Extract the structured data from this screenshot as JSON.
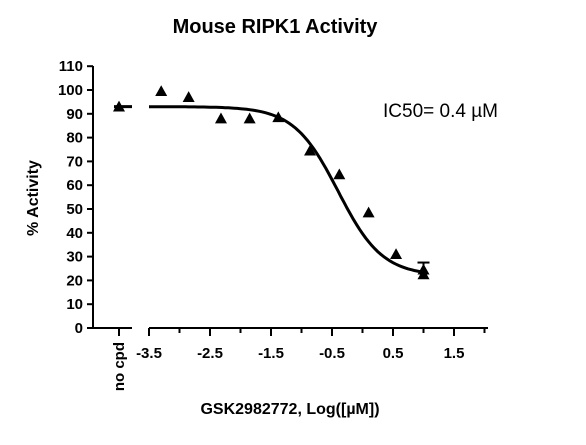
{
  "chart_data": {
    "type": "scatter",
    "title": "Mouse RIPK1 Activity",
    "xlabel": "GSK2982772, Log([µM])",
    "ylabel": "% Activity",
    "annotation": "IC50= 0.4 µM",
    "ylim": [
      0,
      110
    ],
    "xlim": [
      -3.5,
      2
    ],
    "y_ticks": [
      "0",
      "10",
      "20",
      "30",
      "40",
      "50",
      "60",
      "70",
      "80",
      "90",
      "100",
      "110"
    ],
    "x_ticks": [
      "-3.5",
      "-2.5",
      "-1.5",
      "-0.5",
      "0.5",
      "1.5"
    ],
    "control": {
      "label": "no cpd",
      "y": 93
    },
    "series": [
      {
        "marker": "triangle",
        "x": [
          -3.3,
          -2.85,
          -2.32,
          -1.85,
          -1.38,
          -0.86,
          -0.38,
          0.1,
          0.55,
          1.0,
          1.0
        ],
        "y": [
          99.5,
          97,
          88,
          88,
          88.5,
          74.5,
          64.5,
          48.5,
          31,
          24.5,
          22.5
        ]
      }
    ],
    "fit": {
      "top": 93,
      "bottom": 22,
      "log_ic50": -0.4,
      "hill": 1.2
    },
    "errorbar": {
      "x": 1.0,
      "low": 22.5,
      "high": 27.5
    }
  }
}
